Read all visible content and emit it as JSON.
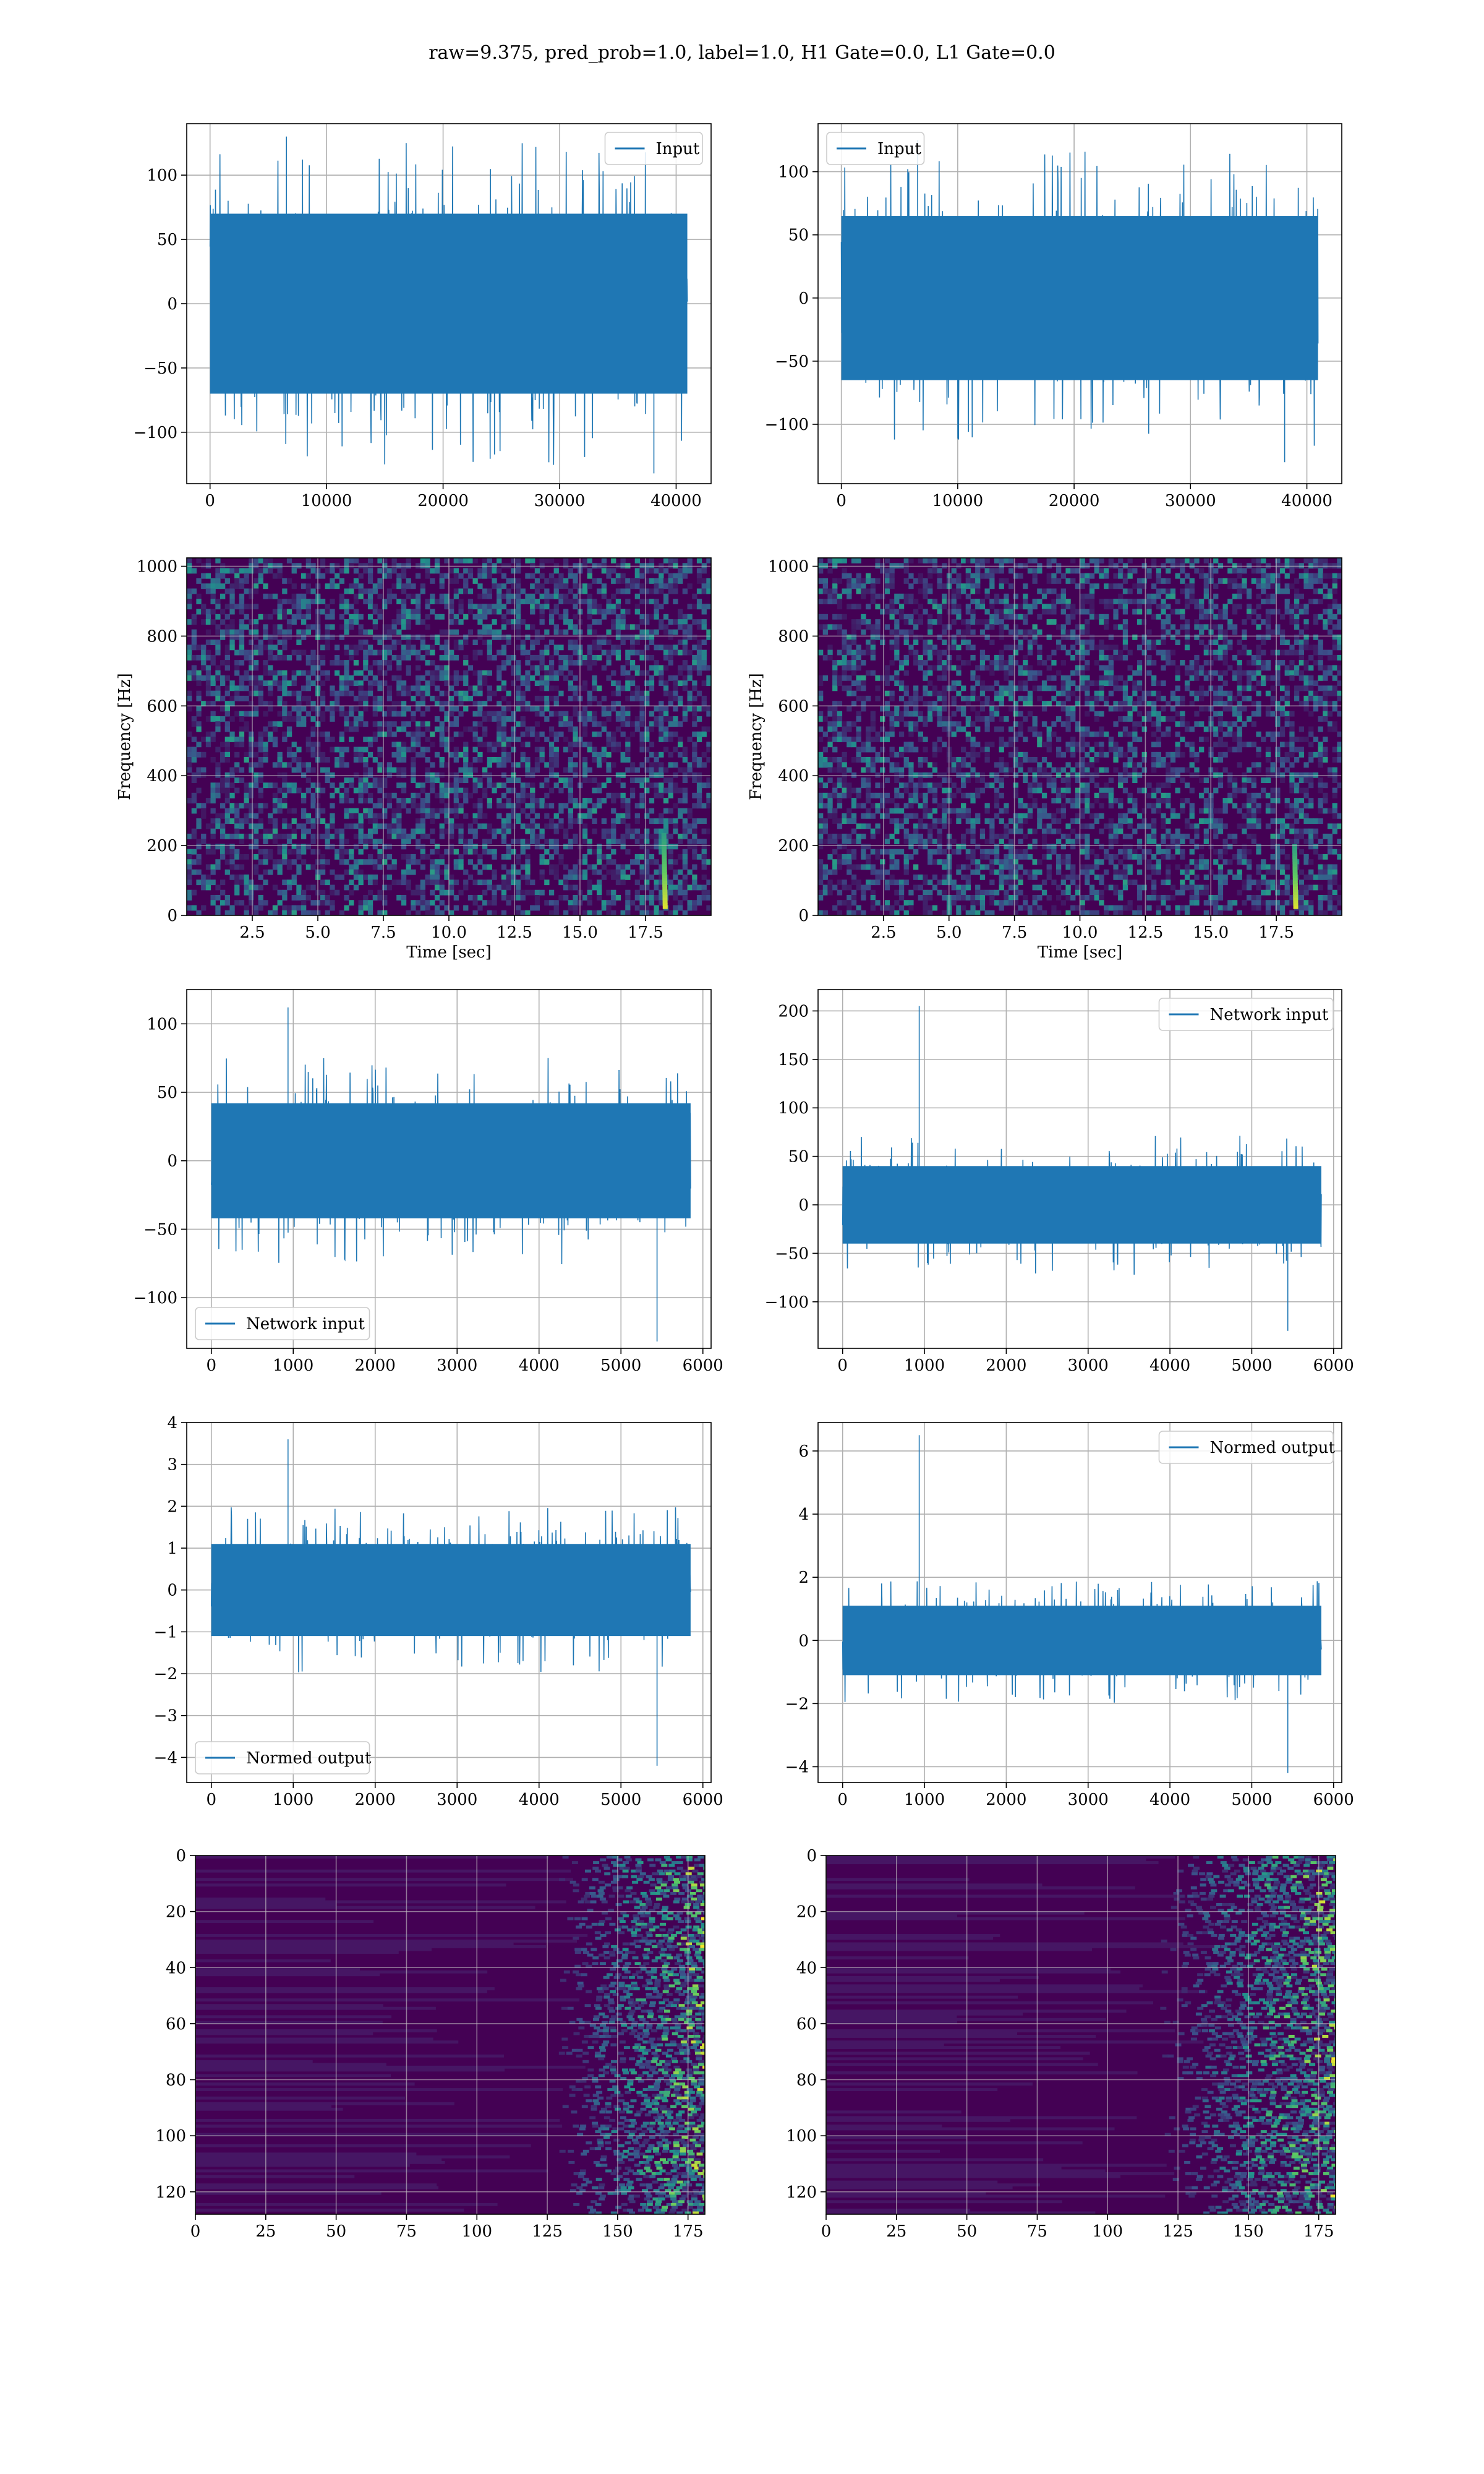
{
  "figure_title": "raw=9.375, pred_prob=1.0, label=1.0, H1 Gate=0.0, L1 Gate=0.0",
  "colors": {
    "series": "#1f77b4",
    "viridis_dark": "#440154",
    "viridis_mid": "#31688e",
    "viridis_teal": "#21918c",
    "viridis_green": "#35b779",
    "viridis_yellow": "#fde725",
    "grid": "#b0b0b0"
  },
  "chart_data": [
    {
      "id": "h1-input",
      "type": "line",
      "title": "",
      "xlabel": "",
      "ylabel": "",
      "xlim": [
        -2000,
        43000
      ],
      "ylim": [
        -140,
        140
      ],
      "xticks": [
        0,
        10000,
        20000,
        30000,
        40000
      ],
      "xtick_labels": [
        "0",
        "10000",
        "20000",
        "30000",
        "40000"
      ],
      "yticks": [
        -100,
        -50,
        0,
        50,
        100
      ],
      "ytick_labels": [
        "−100",
        "−50",
        "0",
        "50",
        "100"
      ],
      "grid": true,
      "legend": "upper right",
      "series": [
        {
          "name": "Input",
          "x_range": [
            0,
            40960
          ],
          "envelope": [
            -70,
            70
          ],
          "peak_max": 130,
          "peak_min": -132,
          "color": "#1f77b4"
        }
      ]
    },
    {
      "id": "l1-input",
      "type": "line",
      "title": "",
      "xlabel": "",
      "ylabel": "",
      "xlim": [
        -2000,
        43000
      ],
      "ylim": [
        -147,
        138
      ],
      "xticks": [
        0,
        10000,
        20000,
        30000,
        40000
      ],
      "xtick_labels": [
        "0",
        "10000",
        "20000",
        "30000",
        "40000"
      ],
      "yticks": [
        -100,
        -50,
        0,
        50,
        100
      ],
      "ytick_labels": [
        "−100",
        "−50",
        "0",
        "50",
        "100"
      ],
      "grid": true,
      "legend": "upper left",
      "series": [
        {
          "name": "Input",
          "x_range": [
            0,
            40960
          ],
          "envelope": [
            -65,
            65
          ],
          "peak_max": 125,
          "peak_min": -130,
          "color": "#1f77b4"
        }
      ]
    },
    {
      "id": "h1-spectrogram",
      "type": "heatmap",
      "title": "",
      "xlabel": "Time [sec]",
      "ylabel": "Frequency [Hz]",
      "xlim": [
        0,
        20
      ],
      "ylim": [
        0,
        1024
      ],
      "xticks": [
        2.5,
        5.0,
        7.5,
        10.0,
        12.5,
        15.0,
        17.5
      ],
      "xtick_labels": [
        "2.5",
        "5.0",
        "7.5",
        "10.0",
        "12.5",
        "15.0",
        "17.5"
      ],
      "yticks": [
        0,
        200,
        400,
        600,
        800,
        1000
      ],
      "ytick_labels": [
        "0",
        "200",
        "400",
        "600",
        "800",
        "1000"
      ],
      "grid": true,
      "chirp": {
        "time": 18.2,
        "freq_range": [
          20,
          230
        ]
      }
    },
    {
      "id": "l1-spectrogram",
      "type": "heatmap",
      "title": "",
      "xlabel": "Time [sec]",
      "ylabel": "Frequency [Hz]",
      "xlim": [
        0,
        20
      ],
      "ylim": [
        0,
        1024
      ],
      "xticks": [
        2.5,
        5.0,
        7.5,
        10.0,
        12.5,
        15.0,
        17.5
      ],
      "xtick_labels": [
        "2.5",
        "5.0",
        "7.5",
        "10.0",
        "12.5",
        "15.0",
        "17.5"
      ],
      "yticks": [
        0,
        200,
        400,
        600,
        800,
        1000
      ],
      "ytick_labels": [
        "0",
        "200",
        "400",
        "600",
        "800",
        "1000"
      ],
      "grid": true,
      "chirp": {
        "time": 18.2,
        "freq_range": [
          20,
          200
        ]
      }
    },
    {
      "id": "h1-network-input",
      "type": "line",
      "title": "",
      "xlabel": "",
      "ylabel": "",
      "xlim": [
        -300,
        6100
      ],
      "ylim": [
        -137,
        125
      ],
      "xticks": [
        0,
        1000,
        2000,
        3000,
        4000,
        5000,
        6000
      ],
      "xtick_labels": [
        "0",
        "1000",
        "2000",
        "3000",
        "4000",
        "5000",
        "6000"
      ],
      "yticks": [
        -100,
        -50,
        0,
        50,
        100
      ],
      "ytick_labels": [
        "−100",
        "−50",
        "0",
        "50",
        "100"
      ],
      "grid": true,
      "legend": "lower left",
      "series": [
        {
          "name": "Network input",
          "x_range": [
            0,
            5850
          ],
          "envelope": [
            -42,
            42
          ],
          "peak_max": 112,
          "peak_min": -132,
          "color": "#1f77b4"
        }
      ]
    },
    {
      "id": "l1-network-input",
      "type": "line",
      "title": "",
      "xlabel": "",
      "ylabel": "",
      "xlim": [
        -300,
        6100
      ],
      "ylim": [
        -148,
        222
      ],
      "xticks": [
        0,
        1000,
        2000,
        3000,
        4000,
        5000,
        6000
      ],
      "xtick_labels": [
        "0",
        "1000",
        "2000",
        "3000",
        "4000",
        "5000",
        "6000"
      ],
      "yticks": [
        -100,
        -50,
        0,
        50,
        100,
        150,
        200
      ],
      "ytick_labels": [
        "−100",
        "−50",
        "0",
        "50",
        "100",
        "150",
        "200"
      ],
      "grid": true,
      "legend": "upper right",
      "series": [
        {
          "name": "Network input",
          "x_range": [
            0,
            5850
          ],
          "envelope": [
            -40,
            40
          ],
          "peak_max": 205,
          "peak_min": -130,
          "color": "#1f77b4"
        }
      ]
    },
    {
      "id": "h1-normed-output",
      "type": "line",
      "title": "",
      "xlabel": "",
      "ylabel": "",
      "xlim": [
        -300,
        6100
      ],
      "ylim": [
        -4.6,
        4.0
      ],
      "xticks": [
        0,
        1000,
        2000,
        3000,
        4000,
        5000,
        6000
      ],
      "xtick_labels": [
        "0",
        "1000",
        "2000",
        "3000",
        "4000",
        "5000",
        "6000"
      ],
      "yticks": [
        -4,
        -3,
        -2,
        -1,
        0,
        1,
        2,
        3,
        4
      ],
      "ytick_labels": [
        "−4",
        "−3",
        "−2",
        "−1",
        "0",
        "1",
        "2",
        "3",
        "4"
      ],
      "grid": true,
      "legend": "lower left",
      "series": [
        {
          "name": "Normed output",
          "x_range": [
            0,
            5850
          ],
          "envelope": [
            -1.1,
            1.1
          ],
          "peak_max": 3.6,
          "peak_min": -4.2,
          "color": "#1f77b4"
        }
      ]
    },
    {
      "id": "l1-normed-output",
      "type": "line",
      "title": "",
      "xlabel": "",
      "ylabel": "",
      "xlim": [
        -300,
        6100
      ],
      "ylim": [
        -4.5,
        6.9
      ],
      "xticks": [
        0,
        1000,
        2000,
        3000,
        4000,
        5000,
        6000
      ],
      "xtick_labels": [
        "0",
        "1000",
        "2000",
        "3000",
        "4000",
        "5000",
        "6000"
      ],
      "yticks": [
        -4,
        -2,
        0,
        2,
        4,
        6
      ],
      "ytick_labels": [
        "−4",
        "−2",
        "0",
        "2",
        "4",
        "6"
      ],
      "grid": true,
      "legend": "upper right",
      "series": [
        {
          "name": "Normed output",
          "x_range": [
            0,
            5850
          ],
          "envelope": [
            -1.1,
            1.1
          ],
          "peak_max": 6.5,
          "peak_min": -4.2,
          "color": "#1f77b4"
        }
      ]
    },
    {
      "id": "h1-activation-map",
      "type": "heatmap",
      "title": "",
      "xlabel": "",
      "ylabel": "",
      "xlim": [
        0,
        181
      ],
      "ylim": [
        128,
        0
      ],
      "xticks": [
        0,
        25,
        50,
        75,
        100,
        125,
        150,
        175
      ],
      "xtick_labels": [
        "0",
        "25",
        "50",
        "75",
        "100",
        "125",
        "150",
        "175"
      ],
      "yticks": [
        0,
        20,
        40,
        60,
        80,
        100,
        120
      ],
      "ytick_labels": [
        "0",
        "20",
        "40",
        "60",
        "80",
        "100",
        "120"
      ],
      "grid": true,
      "hot_region_start": 150
    },
    {
      "id": "l1-activation-map",
      "type": "heatmap",
      "title": "",
      "xlabel": "",
      "ylabel": "",
      "xlim": [
        0,
        181
      ],
      "ylim": [
        128,
        0
      ],
      "xticks": [
        0,
        25,
        50,
        75,
        100,
        125,
        150,
        175
      ],
      "xtick_labels": [
        "0",
        "25",
        "50",
        "75",
        "100",
        "125",
        "150",
        "175"
      ],
      "yticks": [
        0,
        20,
        40,
        60,
        80,
        100,
        120
      ],
      "ytick_labels": [
        "0",
        "20",
        "40",
        "60",
        "80",
        "100",
        "120"
      ],
      "grid": true,
      "hot_region_start": 140
    }
  ]
}
